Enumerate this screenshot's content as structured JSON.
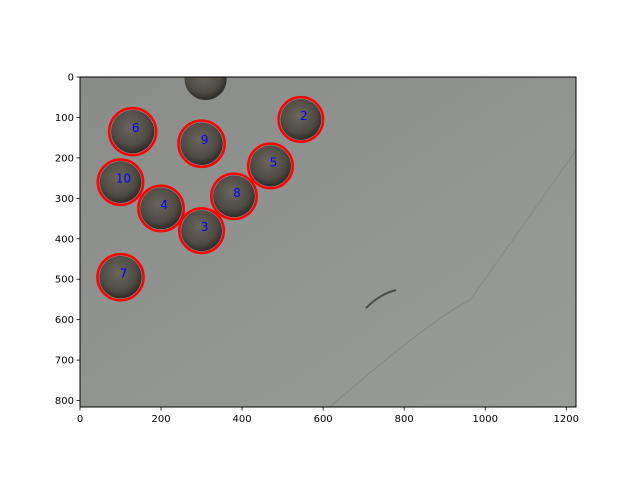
{
  "image": {
    "width": 1224,
    "height": 816,
    "description_colors": {
      "background": "#8f918f",
      "frame": "#000000",
      "ring": "#ff0000",
      "label": "#0000ff",
      "bead": "#4f4c44"
    }
  },
  "axes": {
    "x_ticks": [
      0,
      200,
      400,
      600,
      800,
      1000,
      1200
    ],
    "y_ticks": [
      0,
      100,
      200,
      300,
      400,
      500,
      600,
      700,
      800
    ],
    "xlim": [
      0,
      1224
    ],
    "ylim": [
      816,
      0
    ]
  },
  "untracked_bead": {
    "x": 310,
    "y": 5,
    "r": 52
  },
  "detections": [
    {
      "label": "2",
      "x": 545,
      "y": 105,
      "r": 55
    },
    {
      "label": "6",
      "x": 130,
      "y": 135,
      "r": 58
    },
    {
      "label": "9",
      "x": 300,
      "y": 165,
      "r": 57
    },
    {
      "label": "5",
      "x": 470,
      "y": 220,
      "r": 55
    },
    {
      "label": "10",
      "x": 100,
      "y": 260,
      "r": 56
    },
    {
      "label": "8",
      "x": 380,
      "y": 295,
      "r": 56
    },
    {
      "label": "4",
      "x": 200,
      "y": 325,
      "r": 56
    },
    {
      "label": "3",
      "x": 300,
      "y": 380,
      "r": 55
    },
    {
      "label": "7",
      "x": 100,
      "y": 495,
      "r": 57
    }
  ]
}
